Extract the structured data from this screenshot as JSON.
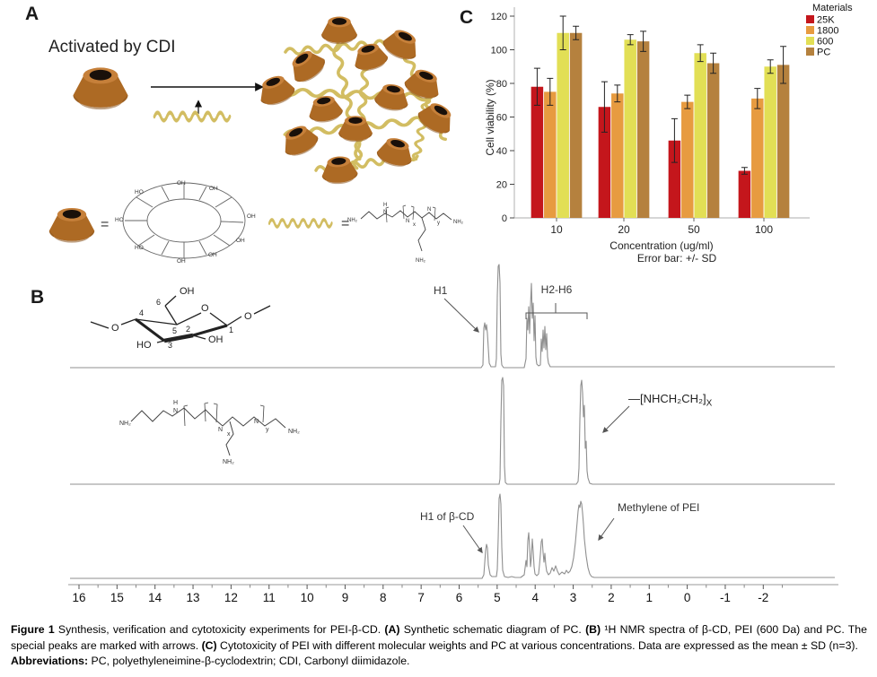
{
  "panelA": {
    "label": "A",
    "caption": "Activated by CDI",
    "equals1": "=",
    "equals2": "=",
    "ring_labels": [
      "OH",
      "HO",
      "OH",
      "HO",
      "OH",
      "OH",
      "HO",
      "OH",
      "OH"
    ],
    "pei": {
      "nh2_left": "NH₂",
      "h": "H",
      "n1": "N",
      "n2": "N",
      "n3": "N",
      "x": "x",
      "y": "y",
      "nh2_right": "NH₂",
      "nh2_bottom": "NH₂"
    }
  },
  "panelC": {
    "label": "C"
  },
  "chart_data": {
    "type": "bar",
    "categories": [
      "10",
      "20",
      "50",
      "100"
    ],
    "series": [
      {
        "name": "25K",
        "color": "#c4161c",
        "values": [
          78,
          66,
          46,
          28
        ],
        "errors": [
          11,
          15,
          13,
          2
        ]
      },
      {
        "name": "1800",
        "color": "#e79b40",
        "values": [
          75,
          74,
          69,
          71
        ],
        "errors": [
          8,
          5,
          4,
          6
        ]
      },
      {
        "name": "600",
        "color": "#e2df55",
        "values": [
          110,
          106,
          98,
          90
        ],
        "errors": [
          10,
          3,
          5,
          4
        ]
      },
      {
        "name": "PC",
        "color": "#b5813e",
        "values": [
          110,
          105,
          92,
          91
        ],
        "errors": [
          4,
          6,
          6,
          11
        ]
      }
    ],
    "title": "",
    "xlabel": "Concentration (ug/ml)",
    "ylabel": "Cell viability (%)",
    "ylim": [
      0,
      125
    ],
    "yticks": [
      0,
      20,
      40,
      60,
      80,
      100,
      120
    ],
    "legend_title": "Materials",
    "legend_position": "top-right",
    "note": "Error bar: +/- SD"
  },
  "panelB": {
    "label": "B",
    "glucose": {
      "n1": "1",
      "n2": "2",
      "n3": "3",
      "n4": "4",
      "n5": "5",
      "n6": "6",
      "oh_top": "OH",
      "o_ring": "O",
      "o_right": "O",
      "o_left": "O",
      "oh_right": "OH",
      "ho_bottom": "HO"
    },
    "pei": {
      "nh2_left": "NH₂",
      "h": "H",
      "n1": "N",
      "n2": "N",
      "n3": "N",
      "x": "x",
      "y": "y",
      "nh2_right": "NH₂",
      "nh2_bottom": "NH₂"
    },
    "ann_h1": "H1",
    "ann_h2h6": "H2-H6",
    "ann_pei_pre": "—",
    "ann_pei_formula": "[NHCH₂CH₂]",
    "ann_pei_sub": "X",
    "ann_h1_bcd": "H1 of β-CD",
    "ann_methylene": "Methylene of PEI",
    "axis_ticks": [
      "16",
      "15",
      "14",
      "13",
      "12",
      "11",
      "10",
      "9",
      "8",
      "7",
      "6",
      "5",
      "4",
      "3",
      "2",
      "1",
      "0",
      "-1",
      "-2"
    ]
  },
  "caption": {
    "label": "Figure 1",
    "part1": " Synthesis, verification and cytotoxicity experiments for PEI-β-CD. ",
    "a": "(A)",
    "part2": " Synthetic schematic diagram of PC. ",
    "b": "(B)",
    "part3": " ¹H NMR spectra of β-CD, PEI (600 Da) and PC. The special peaks are marked with arrows. ",
    "c": "(C)",
    "part4": " Cytotoxicity of PEI with different molecular weights and PC at various concentrations. Data are expressed as the mean ± SD (n=3).",
    "abbr_label": "Abbreviations:",
    "abbr_text": " PC, polyethyleneimine-β-cyclodextrin; CDI, Carbonyl diimidazole."
  }
}
